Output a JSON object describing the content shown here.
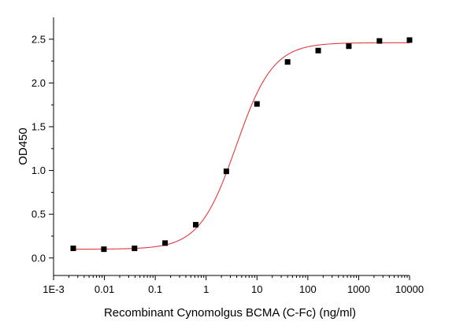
{
  "chart_data": {
    "type": "scatter",
    "title": "",
    "xlabel": "Recombinant Cynomolgus BCMA (C-Fc) (ng/ml)",
    "ylabel": "OD450",
    "x_scale": "log",
    "xlim": [
      0.001,
      10000
    ],
    "ylim": [
      -0.2,
      2.75
    ],
    "x_ticks": [
      0.001,
      0.01,
      0.1,
      1,
      10,
      100,
      1000,
      10000
    ],
    "x_tick_labels": [
      "1E-3",
      "0.01",
      "0.1",
      "1",
      "10",
      "100",
      "1000",
      "10000"
    ],
    "y_ticks": [
      0.0,
      0.5,
      1.0,
      1.5,
      2.0,
      2.5
    ],
    "y_tick_labels": [
      "0.0",
      "0.5",
      "1.0",
      "1.5",
      "2.0",
      "2.5"
    ],
    "grid": false,
    "legend": "none",
    "series": [
      {
        "marker": "square",
        "x": [
          0.00244,
          0.00977,
          0.0391,
          0.156,
          0.625,
          2.5,
          10,
          40,
          160,
          640,
          2560,
          10000
        ],
        "y": [
          0.11,
          0.1,
          0.11,
          0.17,
          0.38,
          0.99,
          1.76,
          2.24,
          2.37,
          2.42,
          2.48,
          2.49
        ]
      }
    ],
    "fit_curve": {
      "type": "4PL",
      "bottom": 0.1,
      "top": 2.46,
      "ec50": 3.9,
      "hill": 1.2
    },
    "colors": {
      "marker": "#000000",
      "curve": "#e0393e",
      "axis": "#000000"
    }
  }
}
